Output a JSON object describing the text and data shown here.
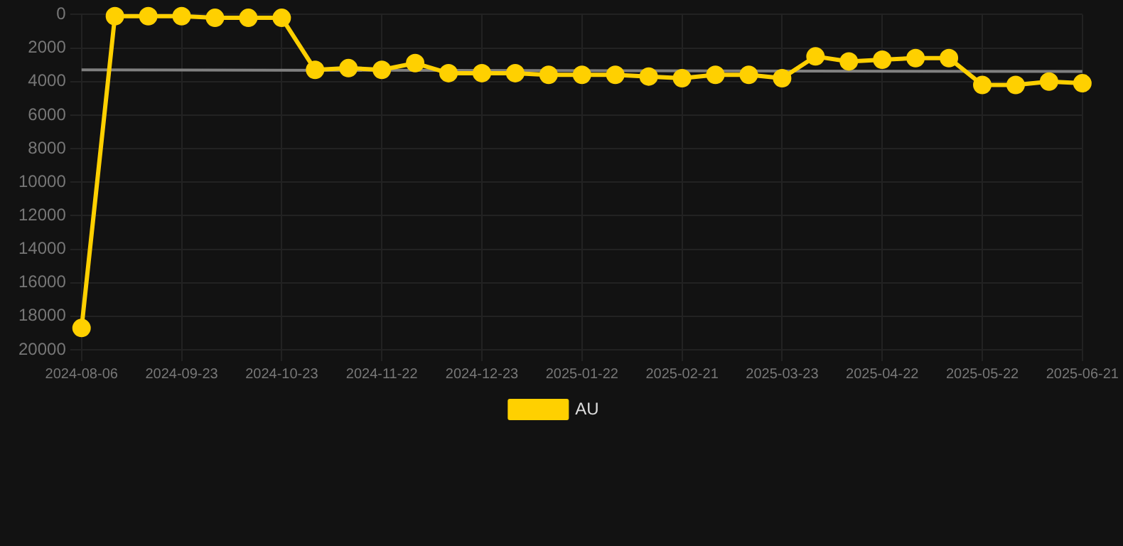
{
  "chart_data": {
    "type": "line",
    "categories": [
      "2024-08-06",
      null,
      null,
      "2024-09-23",
      null,
      null,
      "2024-10-23",
      null,
      null,
      "2024-11-22",
      null,
      null,
      "2024-12-23",
      null,
      null,
      "2025-01-22",
      null,
      null,
      "2025-02-21",
      null,
      null,
      "2025-03-23",
      null,
      null,
      "2025-04-22",
      null,
      null,
      "2025-05-22",
      null,
      null,
      "2025-06-21"
    ],
    "series": [
      {
        "name": "AU",
        "color": "#ffd000",
        "marker": "circle",
        "values": [
          18700,
          100,
          100,
          100,
          200,
          200,
          200,
          3300,
          3200,
          3300,
          2900,
          3500,
          3500,
          3500,
          3600,
          3600,
          3600,
          3700,
          3800,
          3600,
          3600,
          3800,
          2500,
          2800,
          2700,
          2600,
          2600,
          4200,
          4200,
          4000,
          4100
        ]
      },
      {
        "type": "line",
        "color": "#808080",
        "marker": "none",
        "values": [
          3300,
          null,
          null,
          null,
          null,
          null,
          null,
          null,
          null,
          null,
          null,
          null,
          null,
          null,
          null,
          null,
          null,
          null,
          null,
          null,
          null,
          null,
          null,
          null,
          null,
          null,
          null,
          null,
          null,
          null,
          3400
        ]
      }
    ],
    "ylim": [
      20000,
      0
    ],
    "yticks": [
      0,
      2000,
      4000,
      6000,
      8000,
      10000,
      12000,
      14000,
      16000,
      18000,
      20000
    ],
    "grid": true,
    "legend": "bottom"
  }
}
